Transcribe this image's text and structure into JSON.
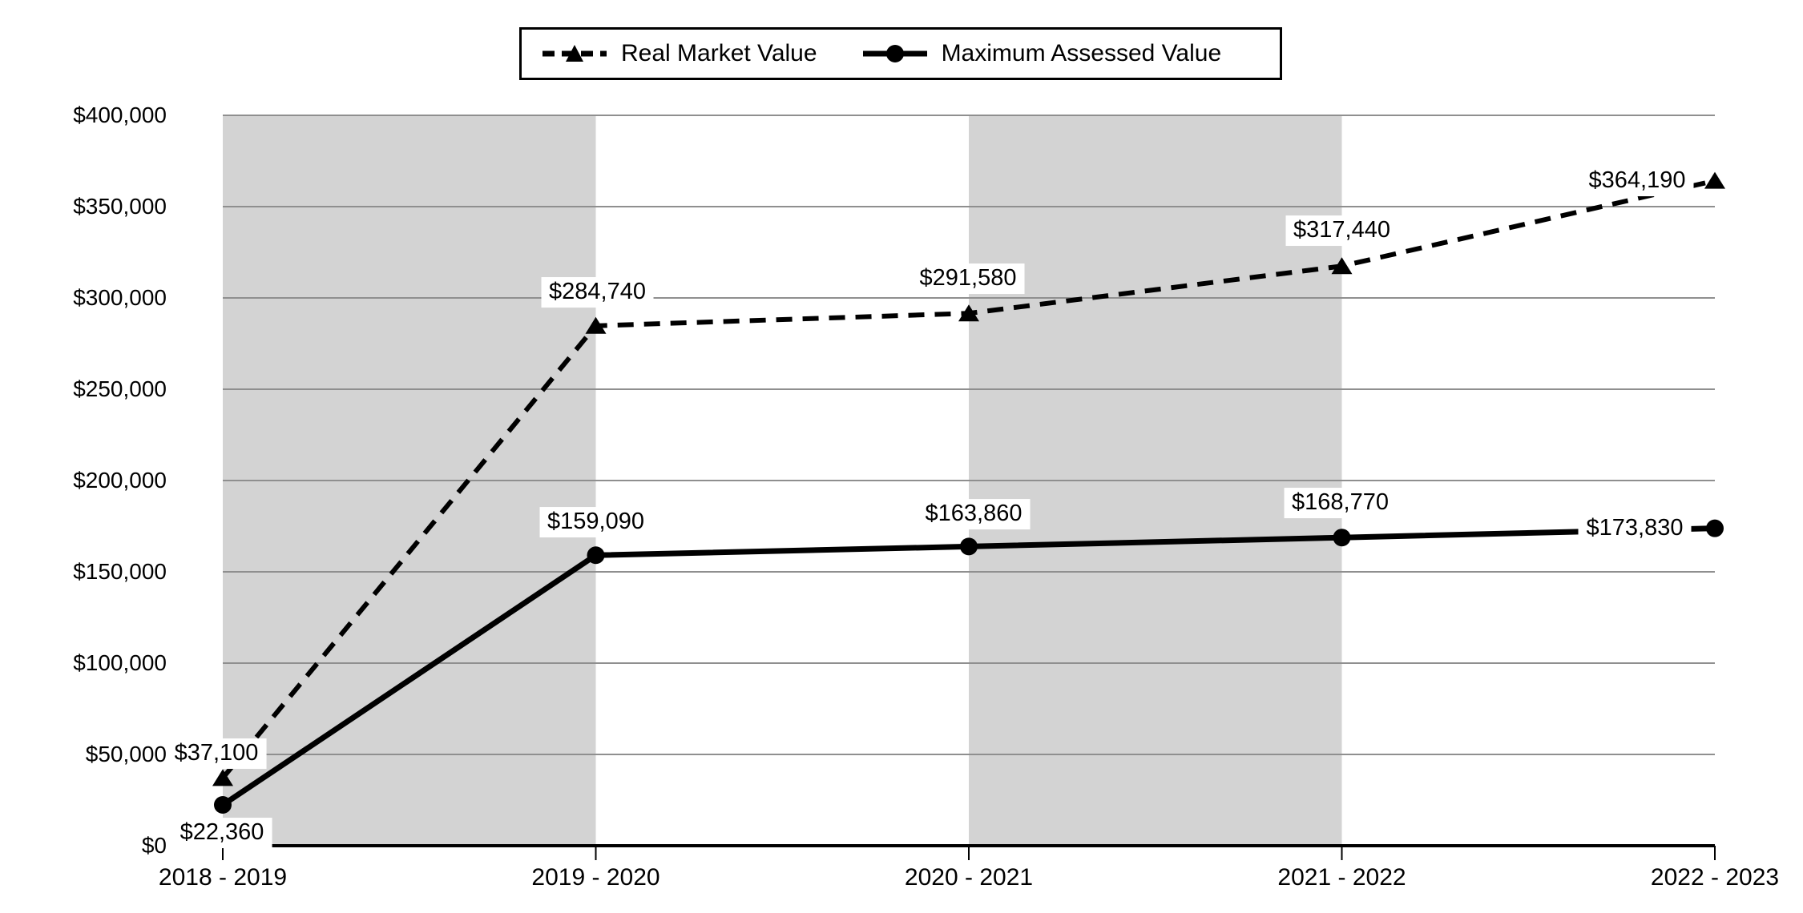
{
  "chart_data": {
    "type": "line",
    "title": "",
    "categories": [
      "2018 - 2019",
      "2019 - 2020",
      "2020 - 2021",
      "2021 - 2022",
      "2022 - 2023"
    ],
    "series": [
      {
        "name": "Real Market Value",
        "values": [
          37100,
          284740,
          291580,
          317440,
          364190
        ],
        "labels": [
          "$37,100",
          "$284,740",
          "$291,580",
          "$317,440",
          "$364,190"
        ],
        "line_style": "dashed",
        "marker": "triangle",
        "color": "#000000"
      },
      {
        "name": "Maximum Assessed Value",
        "values": [
          22360,
          159090,
          163860,
          168770,
          173830
        ],
        "labels": [
          "$22,360",
          "$159,090",
          "$163,860",
          "$168,770",
          "$173,830"
        ],
        "line_style": "solid",
        "marker": "circle",
        "color": "#000000"
      }
    ],
    "y_axis": {
      "min": 0,
      "max": 400000,
      "step": 50000,
      "tick_labels": [
        "$0",
        "$50,000",
        "$100,000",
        "$150,000",
        "$200,000",
        "$250,000",
        "$300,000",
        "$350,000",
        "$400,000"
      ]
    },
    "x_axis": {
      "tick_labels": [
        "2018 - 2019",
        "2019 - 2020",
        "2020 - 2021",
        "2021 - 2022",
        "2022 - 2023"
      ]
    },
    "legend": {
      "position": "top",
      "entries": [
        "Real Market Value",
        "Maximum Assessed Value"
      ]
    },
    "grid": true,
    "banded_intervals": [
      [
        0,
        1
      ],
      [
        2,
        3
      ]
    ],
    "colors": {
      "band": "#d3d3d3",
      "gridline": "#8f8f8f",
      "axis": "#000000",
      "series": "#000000",
      "background": "#ffffff",
      "label_background": "#ffffff"
    }
  }
}
